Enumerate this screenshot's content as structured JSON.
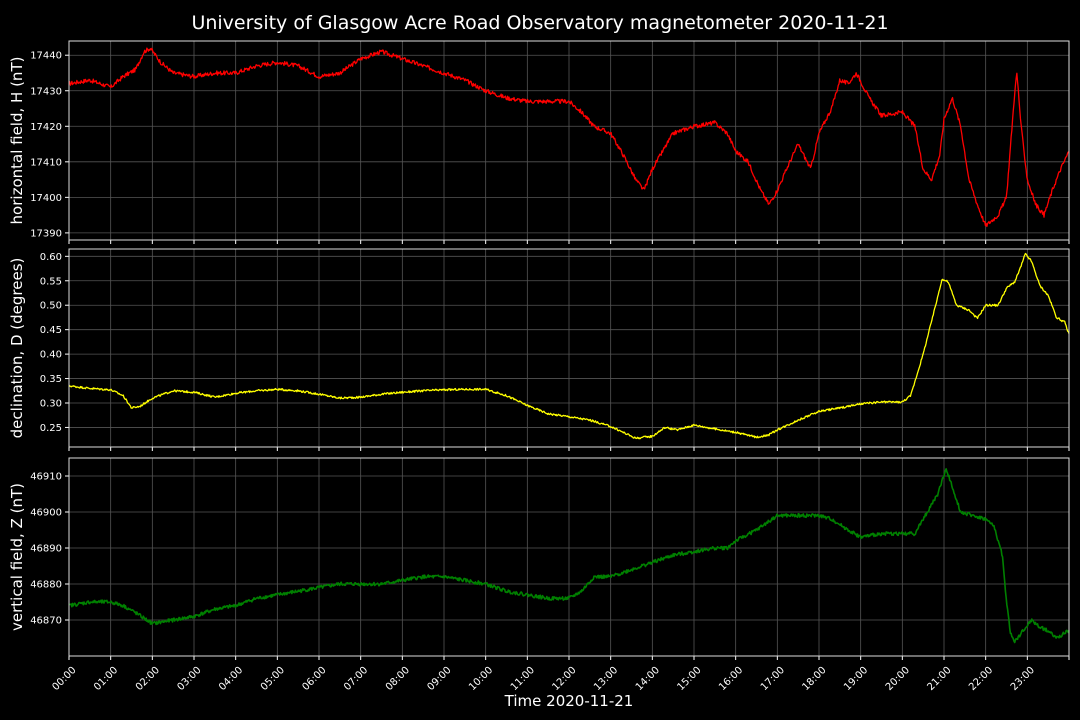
{
  "chart_data": {
    "type": "line",
    "title": "University of Glasgow Acre Road Observatory magnetometer 2020-11-21",
    "xlabel": "Time 2020-11-21",
    "x_tick_labels": [
      "00:00",
      "01:00",
      "02:00",
      "03:00",
      "04:00",
      "05:00",
      "06:00",
      "07:00",
      "08:00",
      "09:00",
      "10:00",
      "11:00",
      "12:00",
      "13:00",
      "14:00",
      "15:00",
      "16:00",
      "17:00",
      "18:00",
      "19:00",
      "20:00",
      "21:00",
      "22:00",
      "23:00"
    ],
    "xlim_hours": [
      0,
      24
    ],
    "grid": true,
    "panels": [
      {
        "ylabel": "horizontal field, H (nT)",
        "color": "#ff0000",
        "ylim": [
          17388,
          17444
        ],
        "y_ticks": [
          17390,
          17400,
          17410,
          17420,
          17430,
          17440
        ],
        "y_tick_labels": [
          "17390",
          "17400",
          "17410",
          "17420",
          "17430",
          "17440"
        ],
        "noise": 0.6,
        "points": [
          [
            0,
            17432
          ],
          [
            0.5,
            17433
          ],
          [
            1.0,
            17431
          ],
          [
            1.3,
            17434
          ],
          [
            1.6,
            17436
          ],
          [
            1.8,
            17441
          ],
          [
            1.95,
            17442
          ],
          [
            2.2,
            17438
          ],
          [
            2.5,
            17435
          ],
          [
            3.0,
            17434
          ],
          [
            3.5,
            17435
          ],
          [
            4.0,
            17435
          ],
          [
            4.5,
            17437
          ],
          [
            5.0,
            17438
          ],
          [
            5.5,
            17437
          ],
          [
            6.0,
            17434
          ],
          [
            6.5,
            17435
          ],
          [
            7.0,
            17439
          ],
          [
            7.5,
            17441
          ],
          [
            8.0,
            17439
          ],
          [
            8.5,
            17437
          ],
          [
            9.0,
            17435
          ],
          [
            9.5,
            17433
          ],
          [
            10.0,
            17430
          ],
          [
            10.5,
            17428
          ],
          [
            11.0,
            17427
          ],
          [
            11.5,
            17427
          ],
          [
            12.0,
            17427
          ],
          [
            12.3,
            17424
          ],
          [
            12.6,
            17420
          ],
          [
            13.0,
            17418
          ],
          [
            13.3,
            17412
          ],
          [
            13.6,
            17405
          ],
          [
            13.8,
            17402
          ],
          [
            14.0,
            17408
          ],
          [
            14.2,
            17412
          ],
          [
            14.5,
            17418
          ],
          [
            15.0,
            17420
          ],
          [
            15.5,
            17421
          ],
          [
            15.8,
            17418
          ],
          [
            16.0,
            17413
          ],
          [
            16.3,
            17410
          ],
          [
            16.6,
            17402
          ],
          [
            16.8,
            17398
          ],
          [
            17.0,
            17402
          ],
          [
            17.3,
            17410
          ],
          [
            17.5,
            17415
          ],
          [
            17.8,
            17408
          ],
          [
            18.0,
            17418
          ],
          [
            18.3,
            17425
          ],
          [
            18.5,
            17433
          ],
          [
            18.7,
            17432
          ],
          [
            18.9,
            17435
          ],
          [
            19.2,
            17428
          ],
          [
            19.5,
            17423
          ],
          [
            20.0,
            17424
          ],
          [
            20.3,
            17420
          ],
          [
            20.5,
            17408
          ],
          [
            20.7,
            17405
          ],
          [
            20.9,
            17412
          ],
          [
            21.0,
            17422
          ],
          [
            21.2,
            17428
          ],
          [
            21.4,
            17420
          ],
          [
            21.6,
            17405
          ],
          [
            21.8,
            17398
          ],
          [
            22.0,
            17392
          ],
          [
            22.3,
            17395
          ],
          [
            22.5,
            17400
          ],
          [
            22.6,
            17415
          ],
          [
            22.7,
            17430
          ],
          [
            22.75,
            17435
          ],
          [
            22.85,
            17420
          ],
          [
            23.0,
            17405
          ],
          [
            23.2,
            17398
          ],
          [
            23.4,
            17395
          ],
          [
            23.6,
            17402
          ],
          [
            23.8,
            17408
          ],
          [
            24.0,
            17413
          ]
        ]
      },
      {
        "ylabel": "declination, D (degrees)",
        "color": "#ffff00",
        "ylim": [
          0.21,
          0.615
        ],
        "y_ticks": [
          0.25,
          0.3,
          0.35,
          0.4,
          0.45,
          0.5,
          0.55,
          0.6
        ],
        "y_tick_labels": [
          "0.25",
          "0.30",
          "0.35",
          "0.40",
          "0.45",
          "0.50",
          "0.55",
          "0.60"
        ],
        "noise": 0.002,
        "points": [
          [
            0,
            0.335
          ],
          [
            0.5,
            0.33
          ],
          [
            1.0,
            0.327
          ],
          [
            1.3,
            0.315
          ],
          [
            1.5,
            0.29
          ],
          [
            1.7,
            0.293
          ],
          [
            2.0,
            0.31
          ],
          [
            2.5,
            0.325
          ],
          [
            3.0,
            0.322
          ],
          [
            3.5,
            0.312
          ],
          [
            4.0,
            0.32
          ],
          [
            4.5,
            0.325
          ],
          [
            5.0,
            0.328
          ],
          [
            5.5,
            0.325
          ],
          [
            6.0,
            0.318
          ],
          [
            6.5,
            0.31
          ],
          [
            7.0,
            0.312
          ],
          [
            7.5,
            0.318
          ],
          [
            8.0,
            0.322
          ],
          [
            8.5,
            0.325
          ],
          [
            9.0,
            0.327
          ],
          [
            9.5,
            0.328
          ],
          [
            10.0,
            0.328
          ],
          [
            10.5,
            0.315
          ],
          [
            11.0,
            0.295
          ],
          [
            11.5,
            0.278
          ],
          [
            12.0,
            0.272
          ],
          [
            12.5,
            0.265
          ],
          [
            13.0,
            0.252
          ],
          [
            13.3,
            0.24
          ],
          [
            13.6,
            0.228
          ],
          [
            14.0,
            0.232
          ],
          [
            14.3,
            0.25
          ],
          [
            14.6,
            0.245
          ],
          [
            15.0,
            0.255
          ],
          [
            15.5,
            0.247
          ],
          [
            16.0,
            0.24
          ],
          [
            16.5,
            0.23
          ],
          [
            16.8,
            0.235
          ],
          [
            17.0,
            0.245
          ],
          [
            17.5,
            0.265
          ],
          [
            18.0,
            0.283
          ],
          [
            18.5,
            0.29
          ],
          [
            19.0,
            0.298
          ],
          [
            19.5,
            0.302
          ],
          [
            20.0,
            0.302
          ],
          [
            20.2,
            0.315
          ],
          [
            20.5,
            0.4
          ],
          [
            20.8,
            0.5
          ],
          [
            20.95,
            0.553
          ],
          [
            21.1,
            0.548
          ],
          [
            21.3,
            0.5
          ],
          [
            21.6,
            0.49
          ],
          [
            21.8,
            0.473
          ],
          [
            22.0,
            0.5
          ],
          [
            22.3,
            0.5
          ],
          [
            22.5,
            0.535
          ],
          [
            22.7,
            0.548
          ],
          [
            22.85,
            0.58
          ],
          [
            22.95,
            0.605
          ],
          [
            23.1,
            0.59
          ],
          [
            23.3,
            0.54
          ],
          [
            23.5,
            0.52
          ],
          [
            23.7,
            0.475
          ],
          [
            23.9,
            0.465
          ],
          [
            24.0,
            0.44
          ]
        ]
      },
      {
        "ylabel": "vertical field, Z (nT)",
        "color": "#008000",
        "ylim": [
          46860,
          46915
        ],
        "y_ticks": [
          46870,
          46880,
          46890,
          46900,
          46910
        ],
        "y_tick_labels": [
          "46870",
          "46880",
          "46890",
          "46900",
          "46910"
        ],
        "noise": 0.5,
        "points": [
          [
            0,
            46874
          ],
          [
            0.5,
            46875
          ],
          [
            1.0,
            46875
          ],
          [
            1.3,
            46874
          ],
          [
            1.6,
            46872
          ],
          [
            2.0,
            46869
          ],
          [
            2.5,
            46870
          ],
          [
            3.0,
            46871
          ],
          [
            3.5,
            46873
          ],
          [
            4.0,
            46874
          ],
          [
            4.5,
            46876
          ],
          [
            5.0,
            46877
          ],
          [
            5.5,
            46878
          ],
          [
            6.0,
            46879
          ],
          [
            6.5,
            46880
          ],
          [
            7.0,
            46880
          ],
          [
            7.5,
            46880
          ],
          [
            8.0,
            46881
          ],
          [
            8.5,
            46882
          ],
          [
            9.0,
            46882
          ],
          [
            9.5,
            46881
          ],
          [
            10.0,
            46880
          ],
          [
            10.5,
            46878
          ],
          [
            11.0,
            46877
          ],
          [
            11.5,
            46876
          ],
          [
            12.0,
            46876
          ],
          [
            12.3,
            46878
          ],
          [
            12.6,
            46882
          ],
          [
            13.0,
            46882
          ],
          [
            13.5,
            46884
          ],
          [
            14.0,
            46886
          ],
          [
            14.5,
            46888
          ],
          [
            15.0,
            46889
          ],
          [
            15.5,
            46890
          ],
          [
            15.8,
            46890
          ],
          [
            16.0,
            46892
          ],
          [
            16.5,
            46895
          ],
          [
            17.0,
            46899
          ],
          [
            17.5,
            46899
          ],
          [
            18.0,
            46899
          ],
          [
            18.3,
            46898
          ],
          [
            18.7,
            46895
          ],
          [
            19.0,
            46893
          ],
          [
            19.5,
            46894
          ],
          [
            20.0,
            46894
          ],
          [
            20.3,
            46894
          ],
          [
            20.6,
            46900
          ],
          [
            20.85,
            46905
          ],
          [
            21.05,
            46912
          ],
          [
            21.2,
            46907
          ],
          [
            21.4,
            46900
          ],
          [
            21.7,
            46899
          ],
          [
            22.0,
            46898
          ],
          [
            22.2,
            46896
          ],
          [
            22.4,
            46888
          ],
          [
            22.5,
            46875
          ],
          [
            22.6,
            46866
          ],
          [
            22.7,
            46864
          ],
          [
            22.9,
            46867
          ],
          [
            23.1,
            46870
          ],
          [
            23.3,
            46868
          ],
          [
            23.5,
            46867
          ],
          [
            23.7,
            46865
          ],
          [
            23.85,
            46866
          ],
          [
            24.0,
            46867
          ]
        ]
      }
    ]
  }
}
